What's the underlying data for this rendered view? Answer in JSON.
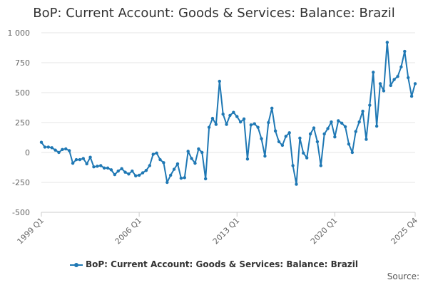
{
  "chart_data": {
    "type": "line",
    "title": "BoP: Current Account: Goods & Services: Balance: Brazil",
    "xlabel": "",
    "ylabel": "",
    "ylim": [
      -500,
      1000
    ],
    "yticks": [
      -500,
      -250,
      0,
      250,
      500,
      750,
      1000
    ],
    "ytick_labels": [
      "-500",
      "-250",
      "0",
      "250",
      "500",
      "750",
      "1 000"
    ],
    "xticks": [
      "1999 Q1",
      "2006 Q1",
      "2013 Q1",
      "2020 Q1",
      "2025 Q4"
    ],
    "grid": true,
    "legend_position": "bottom",
    "series": [
      {
        "name": "BoP: Current Account: Goods & Services: Balance: Brazil",
        "color": "#1f78b4",
        "x": [
          "1999 Q1",
          "1999 Q2",
          "1999 Q3",
          "1999 Q4",
          "2000 Q1",
          "2000 Q2",
          "2000 Q3",
          "2000 Q4",
          "2001 Q1",
          "2001 Q2",
          "2001 Q3",
          "2001 Q4",
          "2002 Q1",
          "2002 Q2",
          "2002 Q3",
          "2002 Q4",
          "2003 Q1",
          "2003 Q2",
          "2003 Q3",
          "2003 Q4",
          "2004 Q1",
          "2004 Q2",
          "2004 Q3",
          "2004 Q4",
          "2005 Q1",
          "2005 Q2",
          "2005 Q3",
          "2005 Q4",
          "2006 Q1",
          "2006 Q2",
          "2006 Q3",
          "2006 Q4",
          "2007 Q1",
          "2007 Q2",
          "2007 Q3",
          "2007 Q4",
          "2008 Q1",
          "2008 Q2",
          "2008 Q3",
          "2008 Q4",
          "2009 Q1",
          "2009 Q2",
          "2009 Q3",
          "2009 Q4",
          "2010 Q1",
          "2010 Q2",
          "2010 Q3",
          "2010 Q4",
          "2011 Q1",
          "2011 Q2",
          "2011 Q3",
          "2011 Q4",
          "2012 Q1",
          "2012 Q2",
          "2012 Q3",
          "2012 Q4",
          "2013 Q1",
          "2013 Q2",
          "2013 Q3",
          "2013 Q4",
          "2014 Q1",
          "2014 Q2",
          "2014 Q3",
          "2014 Q4",
          "2015 Q1",
          "2015 Q2",
          "2015 Q3",
          "2015 Q4",
          "2016 Q1",
          "2016 Q2",
          "2016 Q3",
          "2016 Q4",
          "2017 Q1",
          "2017 Q2",
          "2017 Q3",
          "2017 Q4",
          "2018 Q1",
          "2018 Q2",
          "2018 Q3",
          "2018 Q4",
          "2019 Q1",
          "2019 Q2",
          "2019 Q3",
          "2019 Q4",
          "2020 Q1",
          "2020 Q2",
          "2020 Q3",
          "2020 Q4",
          "2021 Q1",
          "2021 Q2",
          "2021 Q3",
          "2021 Q4",
          "2022 Q1",
          "2022 Q2",
          "2022 Q3",
          "2022 Q4",
          "2023 Q1",
          "2023 Q2",
          "2023 Q3",
          "2023 Q4",
          "2024 Q1",
          "2024 Q2",
          "2024 Q3",
          "2024 Q4",
          "2025 Q1",
          "2025 Q2",
          "2025 Q3",
          "2025 Q4"
        ],
        "values": [
          85,
          45,
          45,
          40,
          20,
          0,
          25,
          30,
          15,
          -90,
          -60,
          -60,
          -50,
          -95,
          -40,
          -120,
          -115,
          -110,
          -130,
          -130,
          -145,
          -185,
          -155,
          -135,
          -165,
          -180,
          -155,
          -195,
          -190,
          -170,
          -150,
          -110,
          -15,
          -5,
          -60,
          -85,
          -250,
          -190,
          -140,
          -95,
          -215,
          -210,
          10,
          -50,
          -90,
          30,
          0,
          -220,
          210,
          285,
          235,
          595,
          320,
          235,
          310,
          335,
          300,
          255,
          280,
          -55,
          230,
          240,
          210,
          115,
          -30,
          250,
          370,
          180,
          90,
          60,
          135,
          165,
          -110,
          -265,
          120,
          -5,
          -45,
          155,
          205,
          90,
          -110,
          155,
          200,
          255,
          130,
          265,
          245,
          215,
          70,
          0,
          175,
          255,
          345,
          110,
          395,
          670,
          220,
          575,
          515,
          920,
          560,
          610,
          635,
          715,
          845,
          625,
          470,
          575
        ]
      }
    ]
  },
  "source_label": "Source:"
}
